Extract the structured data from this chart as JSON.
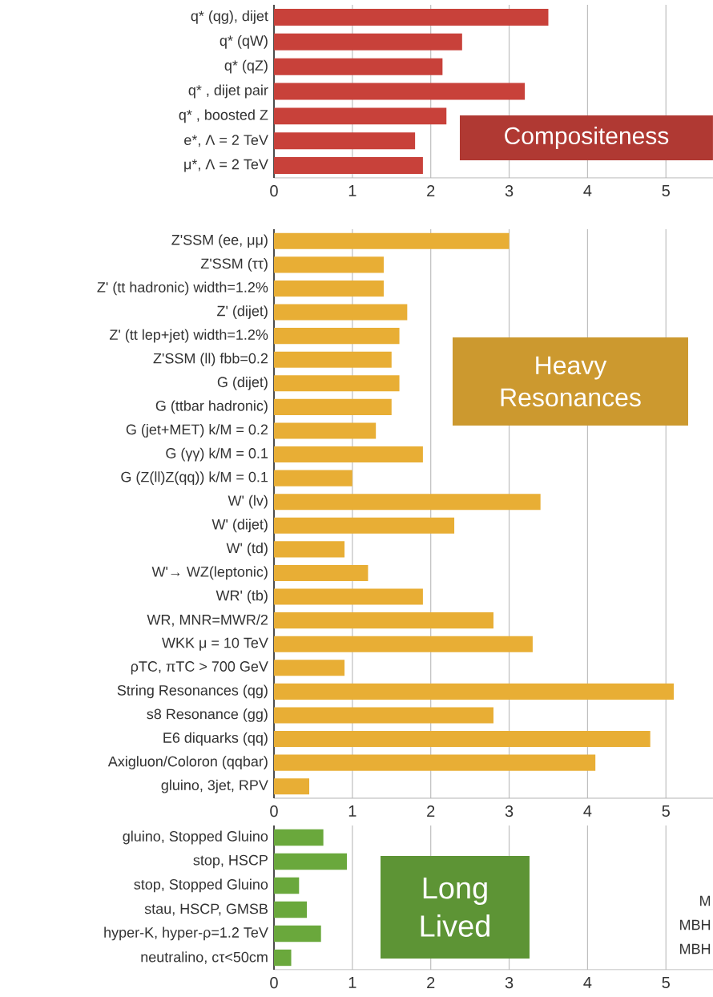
{
  "chart_data": [
    {
      "type": "bar",
      "orientation": "horizontal",
      "title": "Compositeness",
      "color": "#c8413a",
      "categories": [
        "q* (qg), dijet",
        "q* (qW)",
        "q* (qZ)",
        "q* , dijet pair",
        "q* , boosted Z",
        "e*, Λ = 2 TeV",
        "μ*, Λ = 2 TeV"
      ],
      "values": [
        3.5,
        2.4,
        2.15,
        3.2,
        2.2,
        1.8,
        1.9
      ],
      "xlim": [
        0,
        5.6
      ],
      "xticks": [
        0,
        1,
        2,
        3,
        4,
        5
      ],
      "grid": "x"
    },
    {
      "type": "bar",
      "orientation": "horizontal",
      "title": "Heavy Resonances",
      "color": "#e8ae35",
      "categories": [
        "Z'SSM (ee, μμ)",
        "Z'SSM (ττ)",
        "Z' (tt hadronic) width=1.2%",
        "Z' (dijet)",
        "Z' (tt lep+jet) width=1.2%",
        "Z'SSM (ll) fbb=0.2",
        "G (dijet)",
        "G (ttbar hadronic)",
        "G (jet+MET) k/M = 0.2",
        "G (γγ) k/M = 0.1",
        "G (Z(ll)Z(qq)) k/M = 0.1",
        "W' (lv)",
        "W' (dijet)",
        "W' (td)",
        "W'→ WZ(leptonic)",
        "WR' (tb)",
        "WR, MNR=MWR/2",
        "WKK μ = 10 TeV",
        "ρTC, πTC > 700 GeV",
        "String Resonances (qg)",
        "s8 Resonance (gg)",
        "E6 diquarks (qq)",
        "Axigluon/Coloron (qqbar)",
        "gluino, 3jet, RPV"
      ],
      "values": [
        3.0,
        1.4,
        1.4,
        1.7,
        1.6,
        1.5,
        1.6,
        1.5,
        1.3,
        1.9,
        1.0,
        3.4,
        2.3,
        0.9,
        1.2,
        1.9,
        2.8,
        3.3,
        0.9,
        5.1,
        2.8,
        4.8,
        4.1,
        0.45
      ],
      "xlim": [
        0,
        5.6
      ],
      "xticks": [
        0,
        1,
        2,
        3,
        4,
        5
      ],
      "grid": "x"
    },
    {
      "type": "bar",
      "orientation": "horizontal",
      "title": "Long Lived",
      "color": "#6aa83c",
      "categories": [
        "gluino, Stopped Gluino",
        "stop, HSCP",
        "stop, Stopped Gluino",
        "stau, HSCP, GMSB",
        "hyper-K, hyper-ρ=1.2 TeV",
        "neutralino, cτ<50cm"
      ],
      "values": [
        0.63,
        0.93,
        0.32,
        0.42,
        0.6,
        0.22
      ],
      "xlim": [
        0,
        5.6
      ],
      "xticks": [
        0,
        1,
        2,
        3,
        4,
        5
      ],
      "grid": "x",
      "annotations": [
        "M",
        "MBH",
        "MBH"
      ]
    }
  ]
}
